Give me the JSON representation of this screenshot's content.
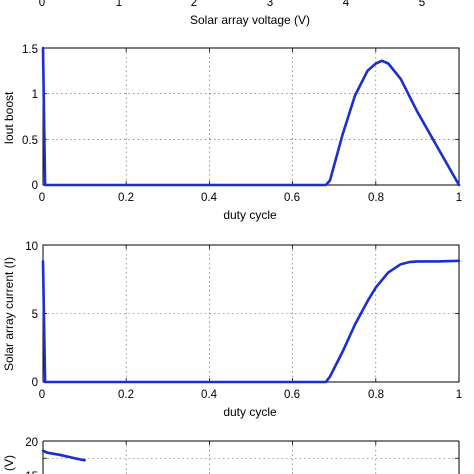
{
  "chart_data": [
    {
      "type": "line",
      "title": "",
      "xlabel": "Solar array voltage (V)",
      "ylabel": "",
      "xlim": [
        0,
        5.5
      ],
      "xticks": [
        "0",
        "1",
        "2",
        "3",
        "4",
        "5"
      ],
      "grid": true,
      "partially_visible": true
    },
    {
      "type": "line",
      "title": "",
      "xlabel": "duty cycle",
      "ylabel": "Iout boost",
      "xlim": [
        0,
        1
      ],
      "ylim": [
        0,
        1.5
      ],
      "xticks": [
        "0",
        "0.2",
        "0.4",
        "0.6",
        "0.8",
        "1"
      ],
      "yticks": [
        "0",
        "0.5",
        "1",
        "1.5"
      ],
      "grid": true,
      "series": [
        {
          "x": [
            0,
            0.005,
            0.68,
            0.69,
            0.72,
            0.75,
            0.78,
            0.8,
            0.815,
            0.83,
            0.86,
            0.9,
            0.95,
            1.0
          ],
          "y": [
            1.5,
            0.0,
            0.0,
            0.05,
            0.55,
            0.98,
            1.25,
            1.33,
            1.36,
            1.33,
            1.16,
            0.8,
            0.4,
            0.0
          ]
        }
      ]
    },
    {
      "type": "line",
      "title": "",
      "xlabel": "duty cycle",
      "ylabel": "Solar array current (I)",
      "xlim": [
        0,
        1
      ],
      "ylim": [
        0,
        10
      ],
      "xticks": [
        "0",
        "0.2",
        "0.4",
        "0.6",
        "0.8",
        "1"
      ],
      "yticks": [
        "0",
        "5",
        "10"
      ],
      "grid": true,
      "series": [
        {
          "x": [
            0,
            0.005,
            0.68,
            0.69,
            0.72,
            0.75,
            0.78,
            0.8,
            0.83,
            0.86,
            0.88,
            0.9,
            0.95,
            1.0
          ],
          "y": [
            8.8,
            0.0,
            0.0,
            0.4,
            2.2,
            4.2,
            5.9,
            6.9,
            8.0,
            8.6,
            8.75,
            8.8,
            8.8,
            8.85
          ]
        }
      ]
    },
    {
      "type": "line",
      "title": "",
      "xlabel": "",
      "ylabel": "e (V)",
      "xlim": [
        0,
        1
      ],
      "ylim": [
        0,
        20
      ],
      "yticks": [
        "20",
        "15"
      ],
      "grid": true,
      "partially_visible": true,
      "series": [
        {
          "x": [
            0,
            0.01,
            0.04,
            0.08,
            0.1
          ],
          "y": [
            17.2,
            16.6,
            16.0,
            14.9,
            14.4
          ]
        }
      ]
    }
  ]
}
